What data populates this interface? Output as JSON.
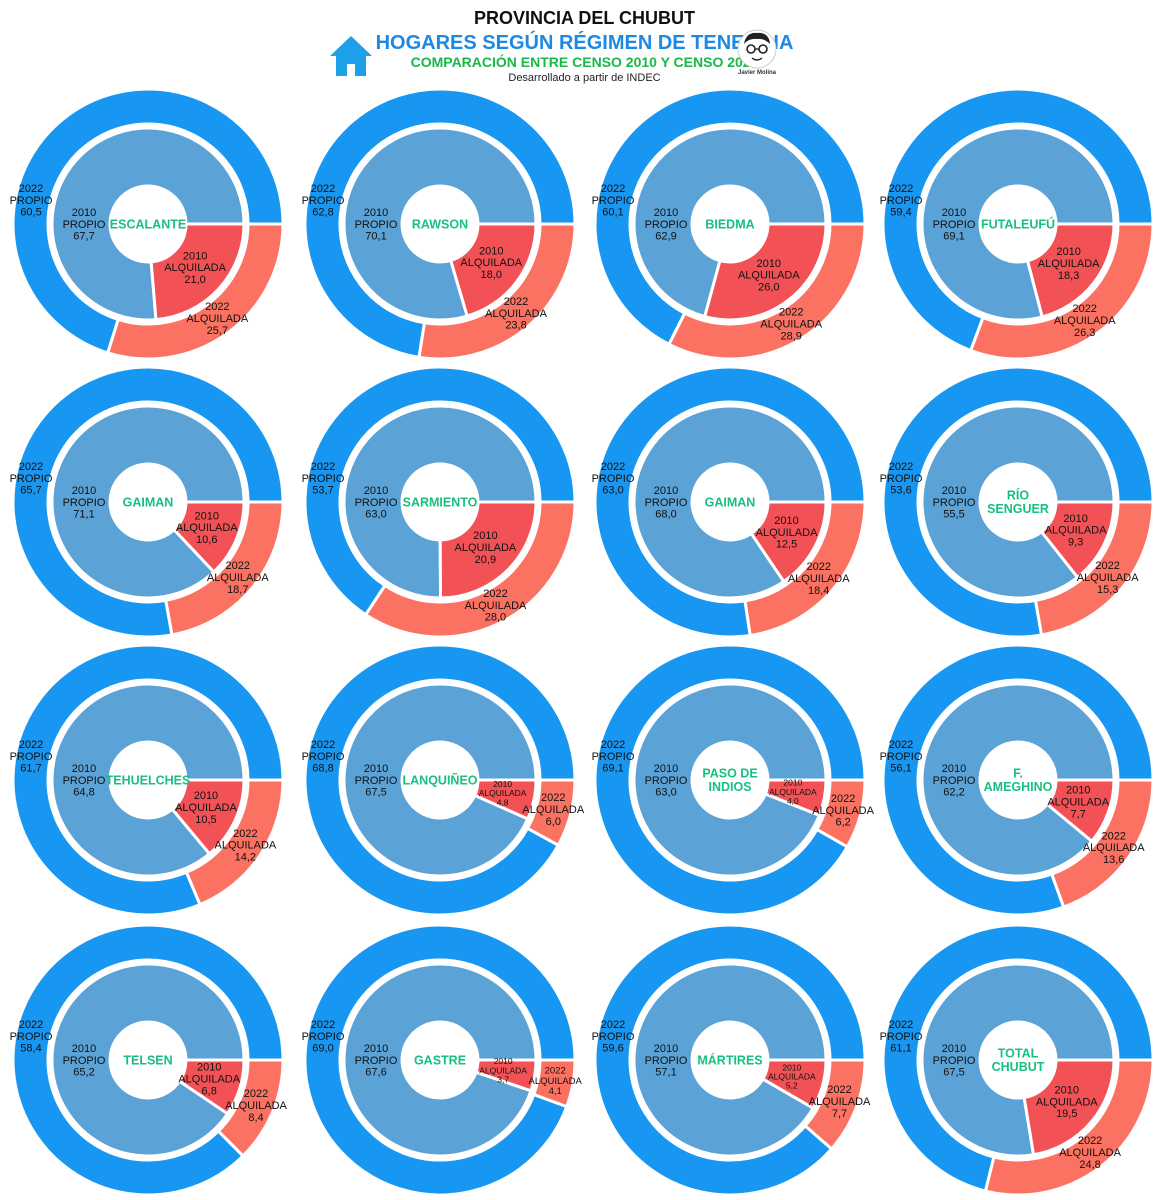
{
  "header": {
    "title": "PROVINCIA DEL CHUBUT",
    "subtitle": "HOGARES SEGÚN RÉGIMEN DE TENENCIA",
    "comparison": "COMPARACIÓN ENTRE CENSO 2010 Y CENSO 2022",
    "source": "Desarrollado a partir de INDEC",
    "author": "Javier Molina",
    "icon": "house-icon"
  },
  "colors": {
    "outer_propio": "#1897f2",
    "outer_alquilada": "#fc7262",
    "inner_propio": "#5ba2d6",
    "inner_alquilada": "#f25256",
    "center_text": "#18c080"
  },
  "chart_data": [
    {
      "type": "pie",
      "center": [
        "ESCALANTE"
      ],
      "series": [
        {
          "name": "2022",
          "propio": "60,5",
          "alquilada": "25,7"
        },
        {
          "name": "2010",
          "propio": "67,7",
          "alquilada": "21,0"
        }
      ]
    },
    {
      "type": "pie",
      "center": [
        "RAWSON"
      ],
      "series": [
        {
          "name": "2022",
          "propio": "62,8",
          "alquilada": "23,8"
        },
        {
          "name": "2010",
          "propio": "70,1",
          "alquilada": "18,0"
        }
      ]
    },
    {
      "type": "pie",
      "center": [
        "BIEDMA"
      ],
      "series": [
        {
          "name": "2022",
          "propio": "60,1",
          "alquilada": "28,9"
        },
        {
          "name": "2010",
          "propio": "62,9",
          "alquilada": "26,0"
        }
      ]
    },
    {
      "type": "pie",
      "center": [
        "FUTALEUFÚ"
      ],
      "series": [
        {
          "name": "2022",
          "propio": "59,4",
          "alquilada": "26,3"
        },
        {
          "name": "2010",
          "propio": "69,1",
          "alquilada": "18,3"
        }
      ]
    },
    {
      "type": "pie",
      "center": [
        "GAIMAN"
      ],
      "series": [
        {
          "name": "2022",
          "propio": "65,7",
          "alquilada": "18,7"
        },
        {
          "name": "2010",
          "propio": "71,1",
          "alquilada": "10,6"
        }
      ]
    },
    {
      "type": "pie",
      "center": [
        "SARMIENTO"
      ],
      "series": [
        {
          "name": "2022",
          "propio": "53,7",
          "alquilada": "28,0"
        },
        {
          "name": "2010",
          "propio": "63,0",
          "alquilada": "20,9"
        }
      ]
    },
    {
      "type": "pie",
      "center": [
        "GAIMAN"
      ],
      "series": [
        {
          "name": "2022",
          "propio": "63,0",
          "alquilada": "18,4"
        },
        {
          "name": "2010",
          "propio": "68,0",
          "alquilada": "12,5"
        }
      ]
    },
    {
      "type": "pie",
      "center": [
        "RÍO",
        "SENGUER"
      ],
      "series": [
        {
          "name": "2022",
          "propio": "53,6",
          "alquilada": "15,3"
        },
        {
          "name": "2010",
          "propio": "55,5",
          "alquilada": "9,3"
        }
      ]
    },
    {
      "type": "pie",
      "center": [
        "TEHUELCHES"
      ],
      "series": [
        {
          "name": "2022",
          "propio": "61,7",
          "alquilada": "14,2"
        },
        {
          "name": "2010",
          "propio": "64,8",
          "alquilada": "10,5"
        }
      ]
    },
    {
      "type": "pie",
      "center": [
        "LANQUIÑEO"
      ],
      "series": [
        {
          "name": "2022",
          "propio": "68,8",
          "alquilada": "6,0"
        },
        {
          "name": "2010",
          "propio": "67,5",
          "alquilada": "4,8"
        }
      ]
    },
    {
      "type": "pie",
      "center": [
        "PASO DE",
        "INDIOS"
      ],
      "series": [
        {
          "name": "2022",
          "propio": "69,1",
          "alquilada": "6,2"
        },
        {
          "name": "2010",
          "propio": "63,0",
          "alquilada": "4,0"
        }
      ]
    },
    {
      "type": "pie",
      "center": [
        "F.",
        "AMEGHINO"
      ],
      "series": [
        {
          "name": "2022",
          "propio": "56,1",
          "alquilada": "13,6"
        },
        {
          "name": "2010",
          "propio": "62,2",
          "alquilada": "7,7"
        }
      ]
    },
    {
      "type": "pie",
      "center": [
        "TELSEN"
      ],
      "series": [
        {
          "name": "2022",
          "propio": "58,4",
          "alquilada": "8,4"
        },
        {
          "name": "2010",
          "propio": "65,2",
          "alquilada": "6,8"
        }
      ]
    },
    {
      "type": "pie",
      "center": [
        "GASTRE"
      ],
      "series": [
        {
          "name": "2022",
          "propio": "69,0",
          "alquilada": "4,1"
        },
        {
          "name": "2010",
          "propio": "67,6",
          "alquilada": "3,7"
        }
      ]
    },
    {
      "type": "pie",
      "center": [
        "MÁRTIRES"
      ],
      "series": [
        {
          "name": "2022",
          "propio": "59,6",
          "alquilada": "7,7"
        },
        {
          "name": "2010",
          "propio": "57,1",
          "alquilada": "5,2"
        }
      ]
    },
    {
      "type": "pie",
      "center": [
        "TOTAL",
        "CHUBUT"
      ],
      "series": [
        {
          "name": "2022",
          "propio": "61,1",
          "alquilada": "24,8"
        },
        {
          "name": "2010",
          "propio": "67,5",
          "alquilada": "19,5"
        }
      ]
    }
  ]
}
